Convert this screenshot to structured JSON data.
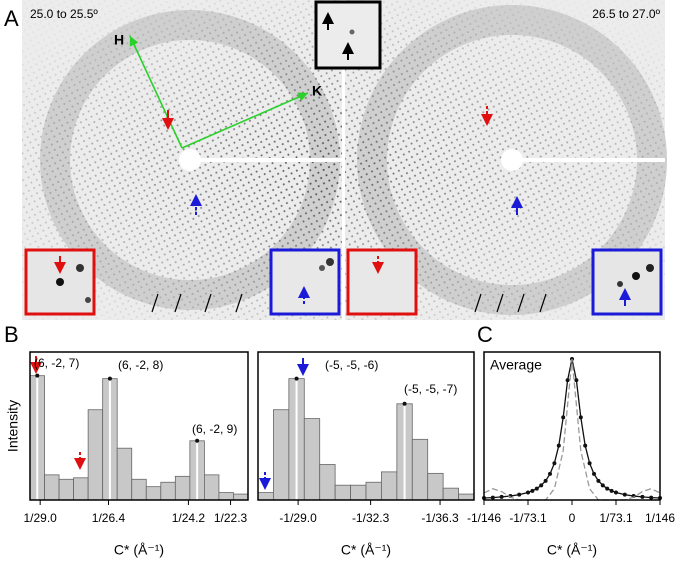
{
  "panel_labels": [
    "A",
    "B",
    "C"
  ],
  "images": {
    "left_label": "25.0 to 25.5º",
    "right_label": "26.5 to 27.0º",
    "axis_h": "H",
    "axis_k": "K"
  },
  "chart_data": [
    {
      "type": "bar",
      "y_label": "Intensity",
      "x_label": "C* (Å⁻¹)",
      "categories": [
        null,
        null,
        null,
        null,
        null,
        null,
        null,
        null,
        null,
        null,
        null,
        null,
        null,
        null,
        null
      ],
      "values": [
        84,
        17,
        14,
        15,
        61,
        82,
        35,
        14,
        9,
        12,
        16,
        40,
        17,
        5,
        4
      ],
      "color": "#c8c8c8",
      "xlim": [
        0,
        15
      ],
      "ylim": [
        0,
        100
      ],
      "xticks": [
        {
          "value": 0.7,
          "label": "1/29.0"
        },
        {
          "value": 5.4,
          "label": "1/26.4"
        },
        {
          "value": 10.9,
          "label": "1/24.2"
        },
        {
          "value": 13.8,
          "label": "1/22.3"
        }
      ],
      "annotations": [
        "(6, -2, 7)",
        "(6, -2, 8)",
        "(6, -2, 9)"
      ]
    },
    {
      "type": "bar",
      "x_label": "C* (Å⁻¹)",
      "categories": [
        null,
        null,
        null,
        null,
        null,
        null,
        null,
        null,
        null,
        null,
        null,
        null,
        null,
        null
      ],
      "values": [
        5,
        61,
        82,
        55,
        24,
        10,
        10,
        12,
        19,
        65,
        41,
        18,
        8,
        4
      ],
      "color": "#c8c8c8",
      "xlim": [
        0,
        14
      ],
      "ylim": [
        0,
        100
      ],
      "xticks": [
        {
          "value": 2.6,
          "label": "-1/29.0"
        },
        {
          "value": 7.3,
          "label": "-1/32.3"
        },
        {
          "value": 11.8,
          "label": "-1/36.3"
        }
      ],
      "annotations": [
        "(-5, -5, -6)",
        "(-5, -5, -7)"
      ]
    },
    {
      "type": "line",
      "title": "Average",
      "x_label": "C* (Å⁻¹)",
      "xlim": [
        -0.0137,
        0.0137
      ],
      "ylim": [
        0,
        105
      ],
      "xticks": [
        {
          "value": -0.0137,
          "label": "-1/146"
        },
        {
          "value": -0.00685,
          "label": "-1/73.1"
        },
        0,
        {
          "value": 0.00685,
          "label": "1/73.1"
        },
        {
          "value": 0.0137,
          "label": "1/146"
        }
      ],
      "series": [
        {
          "color": "#111111",
          "dash": false,
          "markers": true,
          "x": [
            -0.0137,
            -0.01233,
            -0.01096,
            -0.00959,
            -0.00822,
            -0.00685,
            -0.006165,
            -0.00548,
            -0.004795,
            -0.00411,
            -0.003425,
            -0.00274,
            -0.002055,
            -0.00137,
            -0.000685,
            0,
            0.000685,
            0.00137,
            0.002055,
            0.00274,
            0.003425,
            0.00411,
            0.004795,
            0.00548,
            0.006165,
            0.00685,
            0.00822,
            0.00959,
            0.01096,
            0.01233,
            0.0137
          ],
          "values": [
            1.4,
            1.7,
            2.2,
            2.8,
            3.8,
            5.3,
            6.5,
            8.1,
            10.4,
            13.6,
            18.5,
            26.1,
            38.6,
            58.6,
            85,
            100,
            85,
            58.6,
            38.6,
            26.1,
            18.5,
            13.6,
            10.4,
            8.1,
            6.5,
            5.3,
            3.8,
            2.8,
            2.2,
            1.7,
            1.4
          ]
        },
        {
          "color": "#999999",
          "dash": true,
          "markers": false,
          "x": [
            -0.0137,
            -0.01233,
            -0.01096,
            -0.00959,
            -0.00822,
            -0.00685,
            -0.00548,
            -0.00411,
            -0.00274,
            -0.00137,
            0,
            0.00137,
            0.00274,
            0.00411,
            0.00548,
            0.00685,
            0.00822,
            0.00959,
            0.01096,
            0.01233,
            0.0137
          ],
          "values": [
            5,
            8,
            6,
            2,
            0,
            0,
            0,
            0,
            8,
            35,
            100,
            35,
            8,
            0,
            0,
            0,
            0,
            2,
            6,
            8,
            5
          ]
        }
      ]
    }
  ]
}
